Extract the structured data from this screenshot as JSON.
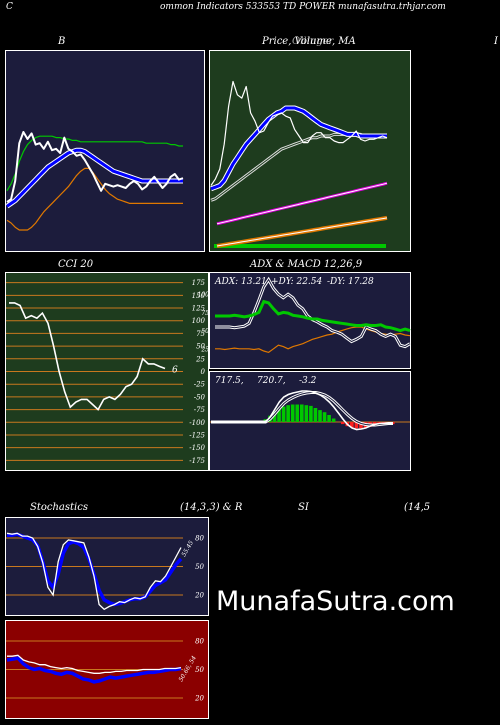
{
  "header": {
    "left_char": "C",
    "title": "ommon  Indicators 533553 TD POWER munafasutra.trhjar.com"
  },
  "titles": {
    "bb": "B",
    "price": "Price,  Volume,  MA",
    "price_overlap": "Ollinger",
    "edge_right": "I",
    "cci": "CCI 20",
    "adx_macd": "ADX  & MACD 12,26,9",
    "stoch": "Stochastics",
    "stoch_params": "(14,3,3) & R",
    "rsi": "SI",
    "rsi_params": "(14,5"
  },
  "watermark": "MunafaSutra.com",
  "colors": {
    "navy": "#1c1c3c",
    "green_bg": "#1e3c1e",
    "dark_red": "#8b0000",
    "grid": "#c8781e",
    "white": "#ffffff",
    "blue": "#0000ff",
    "green": "#00c800",
    "orange": "#e07800",
    "magenta": "#e000e0"
  },
  "chart_data": [
    {
      "id": "bollinger",
      "type": "line",
      "series": [
        {
          "color": "#ffffff",
          "values": [
            0.2,
            0.22,
            0.35,
            0.62,
            0.7,
            0.65,
            0.69,
            0.61,
            0.62,
            0.58,
            0.63,
            0.57,
            0.58,
            0.55,
            0.66,
            0.58,
            0.56,
            0.53,
            0.54,
            0.5,
            0.45,
            0.4,
            0.34,
            0.28,
            0.33,
            0.32,
            0.31,
            0.32,
            0.31,
            0.3,
            0.33,
            0.35,
            0.33,
            0.29,
            0.31,
            0.35,
            0.38,
            0.34,
            0.3,
            0.33,
            0.38,
            0.4,
            0.36,
            0.37
          ]
        },
        {
          "color": "#0000ff",
          "values": [
            0.17,
            0.19,
            0.21,
            0.24,
            0.27,
            0.3,
            0.33,
            0.36,
            0.39,
            0.42,
            0.45,
            0.47,
            0.49,
            0.51,
            0.53,
            0.55,
            0.56,
            0.57,
            0.57,
            0.56,
            0.54,
            0.52,
            0.5,
            0.48,
            0.46,
            0.44,
            0.42,
            0.41,
            0.4,
            0.39,
            0.38,
            0.37,
            0.36,
            0.35,
            0.35,
            0.35,
            0.35,
            0.35,
            0.35,
            0.35,
            0.35,
            0.35,
            0.35,
            0.35
          ]
        },
        {
          "color": "#00c800",
          "values": [
            0.28,
            0.33,
            0.4,
            0.49,
            0.56,
            0.61,
            0.64,
            0.66,
            0.67,
            0.67,
            0.67,
            0.67,
            0.66,
            0.66,
            0.65,
            0.65,
            0.64,
            0.64,
            0.63,
            0.63,
            0.63,
            0.63,
            0.63,
            0.63,
            0.63,
            0.63,
            0.63,
            0.63,
            0.63,
            0.63,
            0.63,
            0.63,
            0.63,
            0.63,
            0.62,
            0.62,
            0.62,
            0.62,
            0.62,
            0.62,
            0.61,
            0.61,
            0.6,
            0.6
          ]
        },
        {
          "color": "#e07800",
          "values": [
            0.07,
            0.05,
            0.02,
            0.0,
            0.0,
            0.0,
            0.02,
            0.05,
            0.09,
            0.13,
            0.16,
            0.19,
            0.22,
            0.25,
            0.28,
            0.31,
            0.35,
            0.39,
            0.42,
            0.44,
            0.44,
            0.41,
            0.37,
            0.33,
            0.29,
            0.26,
            0.24,
            0.22,
            0.21,
            0.2,
            0.19,
            0.19,
            0.19,
            0.19,
            0.19,
            0.19,
            0.19,
            0.19,
            0.19,
            0.19,
            0.19,
            0.19,
            0.19,
            0.19
          ]
        }
      ]
    },
    {
      "id": "price_ma",
      "type": "line",
      "series": [
        {
          "color": "#ffffff",
          "values": [
            0.3,
            0.34,
            0.4,
            0.55,
            0.78,
            0.93,
            0.85,
            0.83,
            0.9,
            0.74,
            0.69,
            0.62,
            0.63,
            0.68,
            0.72,
            0.73,
            0.74,
            0.72,
            0.71,
            0.64,
            0.6,
            0.56,
            0.56,
            0.6,
            0.62,
            0.62,
            0.59,
            0.59,
            0.57,
            0.56,
            0.56,
            0.58,
            0.6,
            0.63,
            0.58,
            0.57,
            0.58,
            0.58,
            0.59,
            0.6,
            0.59
          ]
        },
        {
          "color": "#0000ff",
          "values": [
            0.28,
            0.29,
            0.3,
            0.33,
            0.38,
            0.43,
            0.47,
            0.51,
            0.55,
            0.58,
            0.61,
            0.64,
            0.67,
            0.7,
            0.72,
            0.74,
            0.75,
            0.77,
            0.77,
            0.77,
            0.76,
            0.75,
            0.73,
            0.71,
            0.69,
            0.67,
            0.66,
            0.65,
            0.64,
            0.63,
            0.62,
            0.61,
            0.61,
            0.61,
            0.6,
            0.6,
            0.6,
            0.6,
            0.6,
            0.6,
            0.6
          ]
        },
        {
          "color": "#cccccc",
          "values": [
            0.21,
            0.22,
            0.24,
            0.26,
            0.28,
            0.3,
            0.32,
            0.34,
            0.36,
            0.38,
            0.4,
            0.42,
            0.44,
            0.46,
            0.48,
            0.5,
            0.52,
            0.53,
            0.54,
            0.55,
            0.56,
            0.57,
            0.58,
            0.59,
            0.59,
            0.6,
            0.6,
            0.6,
            0.61,
            0.61,
            0.61,
            0.61,
            0.61,
            0.61,
            0.61,
            0.6,
            0.6,
            0.6,
            0.6,
            0.6,
            0.6
          ]
        },
        {
          "color": "#e000e0",
          "values": [
            0.11,
            0.12,
            0.13,
            0.14,
            0.15,
            0.16,
            0.17,
            0.18,
            0.19,
            0.2,
            0.21,
            0.22,
            0.23,
            0.24,
            0.25,
            0.26,
            0.27,
            0.28,
            0.29,
            0.3,
            0.31,
            0.32,
            0.33,
            0.34,
            0.35,
            0.36,
            0.37,
            0.38,
            0.39,
            0.4,
            0.41,
            0.42,
            0.43,
            0.44,
            0.45,
            0.46,
            0.47,
            0.48,
            0.49,
            0.5,
            0.51
          ]
        },
        {
          "color": "#e07800",
          "values": [
            0.0,
            0.01,
            0.02,
            0.03,
            0.04,
            0.05,
            0.06,
            0.07,
            0.08,
            0.09,
            0.1,
            0.11,
            0.12,
            0.13,
            0.14,
            0.15,
            0.16,
            0.17,
            0.18,
            0.19,
            0.2,
            0.21,
            0.22,
            0.23,
            0.24,
            0.25,
            0.26,
            0.27,
            0.28,
            0.29,
            0.3,
            0.31,
            0.32,
            0.33,
            0.34,
            0.35,
            0.36,
            0.37,
            0.38,
            0.39,
            0.4
          ]
        }
      ]
    },
    {
      "id": "cci",
      "type": "line",
      "y_ticks": [
        175,
        150,
        125,
        100,
        75,
        50,
        25,
        0,
        -25,
        -50,
        -75,
        -100,
        -125,
        -150,
        -175
      ],
      "ylim": [
        -190,
        190
      ],
      "last_value_label": "6",
      "values": [
        135,
        135,
        130,
        105,
        110,
        105,
        115,
        95,
        50,
        0,
        -40,
        -70,
        -60,
        -55,
        -55,
        -65,
        -75,
        -55,
        -50,
        -55,
        -45,
        -30,
        -25,
        -10,
        25,
        15,
        15,
        10,
        6
      ]
    },
    {
      "id": "adx",
      "type": "line",
      "labels": {
        "adx": "ADX: 13.21",
        "pdy": "+DY: 22.54",
        "mdy": "-DY: 17.28"
      },
      "y_ticks": [
        100,
        75,
        50,
        25
      ],
      "ylim": [
        0,
        125
      ],
      "series": [
        {
          "color": "#00c800",
          "values": [
            70,
            70,
            70,
            70,
            71,
            70,
            69,
            70,
            72,
            75,
            90,
            88,
            80,
            73,
            75,
            74,
            71,
            70,
            69,
            67,
            66,
            66,
            64,
            63,
            62,
            61,
            60,
            59,
            58,
            57,
            57,
            58,
            57,
            57,
            58,
            55,
            54,
            52,
            50,
            52,
            50
          ]
        },
        {
          "color": "#ffffff",
          "values": [
            55,
            55,
            55,
            55,
            54,
            55,
            56,
            60,
            75,
            92,
            110,
            120,
            108,
            100,
            95,
            100,
            95,
            85,
            80,
            70,
            65,
            62,
            58,
            55,
            50,
            48,
            45,
            40,
            35,
            38,
            42,
            55,
            52,
            50,
            45,
            42,
            45,
            42,
            30,
            28,
            32
          ]
        },
        {
          "color": "#e07800",
          "values": [
            25,
            25,
            24,
            25,
            26,
            25,
            25,
            25,
            24,
            25,
            22,
            20,
            25,
            30,
            28,
            25,
            28,
            30,
            32,
            35,
            38,
            40,
            42,
            44,
            45,
            48,
            50,
            52,
            54,
            55,
            55,
            52,
            50,
            48,
            46,
            45,
            44,
            45,
            46,
            44,
            43
          ]
        }
      ]
    },
    {
      "id": "macd",
      "type": "bar",
      "labels": {
        "a": "717.5,",
        "b": "720.7,",
        "c": "-3.2"
      },
      "hist": [
        0,
        0,
        0,
        0,
        0,
        0,
        0,
        0,
        0,
        0,
        0,
        0,
        4,
        9,
        15,
        20,
        22,
        24,
        25,
        25,
        25,
        24,
        23,
        20,
        17,
        14,
        10,
        5,
        0,
        -3,
        -6,
        -8,
        -9,
        -9,
        -8,
        -7,
        -6,
        -5,
        -4,
        -3,
        -3
      ],
      "macd": [
        0,
        0,
        0,
        0,
        0,
        0,
        0,
        0,
        0,
        0,
        0,
        0,
        0,
        10,
        25,
        40,
        50,
        55,
        58,
        60,
        62,
        62,
        61,
        58,
        54,
        48,
        40,
        30,
        18,
        6,
        -5,
        -12,
        -15,
        -14,
        -12,
        -8,
        -5,
        -3,
        -3,
        -3,
        -3
      ],
      "signal": [
        0,
        0,
        0,
        0,
        0,
        0,
        0,
        0,
        0,
        0,
        0,
        0,
        0,
        6,
        16,
        27,
        37,
        44,
        49,
        53,
        56,
        58,
        59,
        59,
        57,
        54,
        49,
        42,
        33,
        24,
        15,
        7,
        1,
        -3,
        -5,
        -6,
        -6,
        -5,
        -4,
        -3,
        -3
      ]
    },
    {
      "id": "stochastics",
      "type": "line",
      "y_ticks": [
        80,
        50,
        20
      ],
      "ylim": [
        0,
        100
      ],
      "value_label": "55.45",
      "series": [
        {
          "color": "#0000ff",
          "values": [
            83,
            83,
            84,
            82,
            80,
            78,
            72,
            55,
            35,
            28,
            42,
            64,
            74,
            76,
            74,
            70,
            58,
            42,
            25,
            15,
            12,
            10,
            11,
            13,
            15,
            16,
            16,
            18,
            24,
            30,
            33,
            36,
            44,
            52,
            58
          ]
        },
        {
          "color": "#ffffff",
          "values": [
            85,
            84,
            85,
            82,
            82,
            80,
            71,
            54,
            28,
            20,
            55,
            73,
            78,
            77,
            76,
            75,
            60,
            40,
            10,
            5,
            8,
            10,
            13,
            12,
            15,
            17,
            16,
            18,
            28,
            35,
            34,
            40,
            50,
            60,
            70
          ]
        }
      ]
    },
    {
      "id": "williams_r",
      "type": "line",
      "y_ticks": [
        80,
        50,
        20
      ],
      "ylim": [
        0,
        100
      ],
      "value_label": "50.66, 54",
      "series": [
        {
          "color": "#0000ff",
          "values": [
            60,
            61,
            62,
            56,
            52,
            50,
            51,
            49,
            48,
            46,
            45,
            47,
            46,
            43,
            40,
            39,
            37,
            38,
            40,
            42,
            41,
            42,
            43,
            44,
            45,
            46,
            47,
            47,
            48,
            49,
            50,
            50,
            51
          ]
        },
        {
          "color": "#ffffff",
          "values": [
            64,
            64,
            65,
            60,
            58,
            57,
            55,
            55,
            53,
            52,
            51,
            52,
            51,
            49,
            48,
            47,
            46,
            46,
            47,
            47,
            48,
            48,
            49,
            49,
            49,
            50,
            50,
            50,
            50,
            51,
            51,
            51,
            52
          ]
        }
      ]
    }
  ]
}
